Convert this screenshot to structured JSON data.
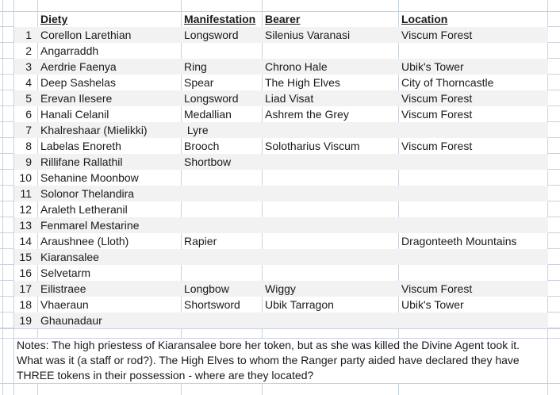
{
  "colors": {
    "band": "#f2f2f2",
    "gridline": "#c9d2de",
    "text": "#1a1a1a"
  },
  "table": {
    "columns": [
      {
        "label": "Diety"
      },
      {
        "label": "Manifestation"
      },
      {
        "label": "Bearer"
      },
      {
        "label": "Location"
      }
    ],
    "cell_keys": [
      "num",
      "diety",
      "manifestation",
      "bearer",
      "location"
    ],
    "rows": [
      {
        "num": "1",
        "diety": "Corellon Larethian",
        "manifestation": "Longsword",
        "bearer": "Silenius Varanasi",
        "location": "Viscum Forest"
      },
      {
        "num": "2",
        "diety": "Angarraddh",
        "manifestation": "",
        "bearer": "",
        "location": ""
      },
      {
        "num": "3",
        "diety": "Aerdrie Faenya",
        "manifestation": "Ring",
        "bearer": "Chrono Hale",
        "location": "Ubik's Tower"
      },
      {
        "num": "4",
        "diety": "Deep Sashelas",
        "manifestation": "Spear",
        "bearer": "The High Elves",
        "location": "City of Thorncastle"
      },
      {
        "num": "5",
        "diety": "Erevan Ilesere",
        "manifestation": "Longsword",
        "bearer": "Liad Visat",
        "location": "Viscum Forest"
      },
      {
        "num": "6",
        "diety": "Hanali Celanil",
        "manifestation": "Medallian",
        "bearer": "Ashrem the Grey",
        "location": "Viscum Forest"
      },
      {
        "num": "7",
        "diety": "Khalreshaar (Mielikki)",
        "manifestation": " Lyre",
        "bearer": "",
        "location": ""
      },
      {
        "num": "8",
        "diety": "Labelas Enoreth",
        "manifestation": "Brooch",
        "bearer": "Solotharius Viscum",
        "location": "Viscum Forest"
      },
      {
        "num": "9",
        "diety": "Rillifane Rallathil",
        "manifestation": "Shortbow",
        "bearer": "",
        "location": ""
      },
      {
        "num": "10",
        "diety": "Sehanine Moonbow",
        "manifestation": "",
        "bearer": "",
        "location": ""
      },
      {
        "num": "11",
        "diety": "Solonor Thelandira",
        "manifestation": "",
        "bearer": "",
        "location": ""
      },
      {
        "num": "12",
        "diety": "Araleth Letheranil",
        "manifestation": "",
        "bearer": "",
        "location": ""
      },
      {
        "num": "13",
        "diety": "Fenmarel Mestarine",
        "manifestation": "",
        "bearer": "",
        "location": ""
      },
      {
        "num": "14",
        "diety": "Araushnee (Lloth)",
        "manifestation": "Rapier",
        "bearer": "",
        "location": "Dragonteeth Mountains"
      },
      {
        "num": "15",
        "diety": "Kiaransalee",
        "manifestation": "",
        "bearer": "",
        "location": ""
      },
      {
        "num": "16",
        "diety": "Selvetarm",
        "manifestation": "",
        "bearer": "",
        "location": ""
      },
      {
        "num": "17",
        "diety": "Eilistraee",
        "manifestation": "Longbow",
        "bearer": "Wiggy",
        "location": "Viscum Forest"
      },
      {
        "num": "18",
        "diety": "Vhaeraun",
        "manifestation": "Shortsword",
        "bearer": "Ubik Tarragon",
        "location": "Ubik's Tower"
      },
      {
        "num": "19",
        "diety": "Ghaunadaur",
        "manifestation": "",
        "bearer": "",
        "location": ""
      }
    ]
  },
  "notes": "Notes: The high priestess of Kiaransalee bore her token, but as she was killed the Divine Agent took it. What was it (a staff or rod?). The High Elves to whom the Ranger party aided have declared they have THREE tokens in their possession - where are they located?"
}
